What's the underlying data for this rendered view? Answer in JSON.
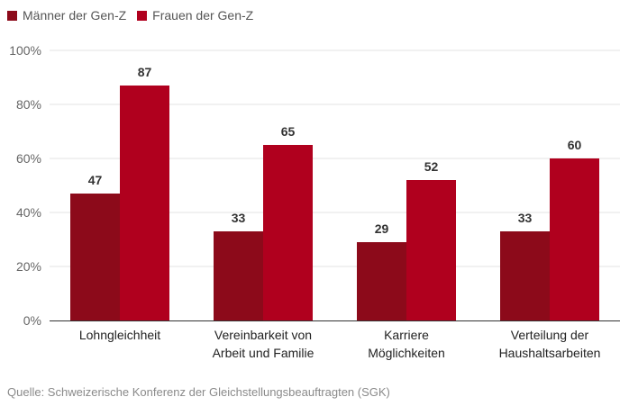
{
  "chart_data": {
    "type": "bar",
    "categories": [
      [
        "Lohngleichheit"
      ],
      [
        "Vereinbarkeit von",
        "Arbeit und Familie"
      ],
      [
        "Karriere",
        "Möglichkeiten"
      ],
      [
        "Verteilung der",
        "Haushaltsarbeiten"
      ]
    ],
    "series": [
      {
        "name": "Männer der Gen-Z",
        "color": "#8c0a1a",
        "values": [
          47,
          33,
          29,
          33
        ]
      },
      {
        "name": "Frauen der Gen-Z",
        "color": "#b0001e",
        "values": [
          87,
          65,
          52,
          60
        ]
      }
    ],
    "ylim": [
      0,
      100
    ],
    "yticks": [
      0,
      20,
      40,
      60,
      80,
      100
    ],
    "ytick_labels": [
      "0%",
      "20%",
      "40%",
      "60%",
      "80%",
      "100%"
    ],
    "grid": true,
    "legend_position": "top-left",
    "data_labels": true
  },
  "source": "Quelle: Schweizerische Konferenz der Gleichstellungsbeauftragten (SGK)"
}
